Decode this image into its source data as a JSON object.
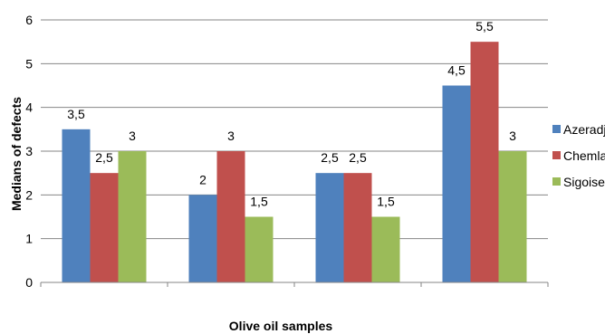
{
  "chart_data": {
    "type": "bar",
    "title": "",
    "xlabel": "Olive oil samples",
    "ylabel": "Medians    of  defects",
    "ylim": [
      0,
      6
    ],
    "yticks": [
      "0",
      "1",
      "2",
      "3",
      "4",
      "5",
      "6"
    ],
    "grid": true,
    "legend_position": "right",
    "categories": [
      "",
      "",
      "",
      ""
    ],
    "series": [
      {
        "name": "Azeradj",
        "color": "#4F81BD",
        "values": [
          3.5,
          2,
          2.5,
          4.5
        ],
        "labels": [
          "3,5",
          "2",
          "2,5",
          "4,5"
        ]
      },
      {
        "name": "Chemlal",
        "color": "#C0504D",
        "values": [
          2.5,
          3,
          2.5,
          5.5
        ],
        "labels": [
          "2,5",
          "3",
          "2,5",
          "5,5"
        ]
      },
      {
        "name": "Sigoise",
        "color": "#9BBB59",
        "values": [
          3,
          1.5,
          1.5,
          3
        ],
        "labels": [
          "3",
          "1,5",
          "1,5",
          "3"
        ]
      }
    ]
  }
}
